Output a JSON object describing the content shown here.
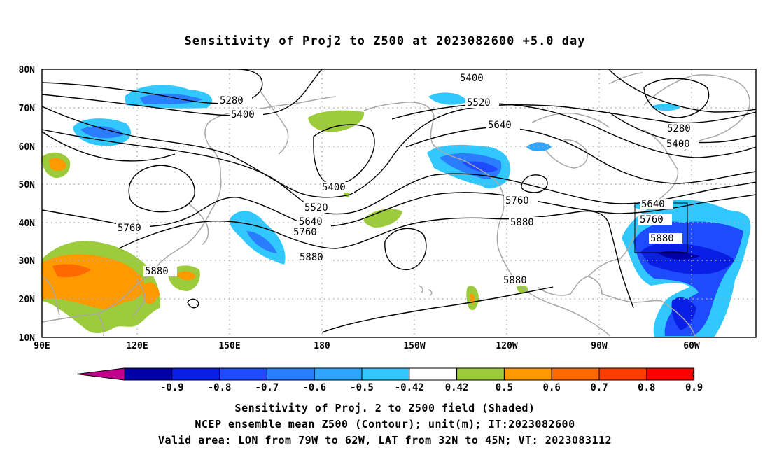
{
  "title": "Sensitivity of Proj2 to Z500 at 2023082600 +5.0 day",
  "captions": [
    "Sensitivity of Proj. 2 to Z500 field (Shaded)",
    "NCEP ensemble mean Z500 (Contour); unit(m); IT:2023082600",
    "Valid area: LON from 79W to 62W, LAT from 32N to 45N; VT: 2023083112"
  ],
  "lat_labels": [
    "80N",
    "70N",
    "60N",
    "50N",
    "40N",
    "30N",
    "20N",
    "10N"
  ],
  "lon_labels": [
    "90E",
    "120E",
    "150E",
    "180",
    "150W",
    "120W",
    "90W",
    "60W"
  ],
  "colorbar": {
    "labels": [
      "-0.9",
      "-0.8",
      "-0.7",
      "-0.6",
      "-0.5",
      "-0.42",
      "0.42",
      "0.5",
      "0.6",
      "0.7",
      "0.8",
      "0.9"
    ],
    "colors": [
      "#0000a8",
      "#0a1fe6",
      "#1e4bff",
      "#2a7dff",
      "#2ea6ff",
      "#30c8ff",
      "#ffffff",
      "#9ccc3c",
      "#ff9900",
      "#ff6a00",
      "#ff3c00",
      "#ff0000"
    ],
    "low_end_color": "#c0008c",
    "high_end_color": "#ff9ecf"
  },
  "contour_labels": [
    "5280",
    "5400",
    "5520",
    "5640",
    "5760",
    "5880"
  ],
  "colors": {
    "coast": "#a8a8a8",
    "grid": "#b0b0b0",
    "contour": "#000000"
  }
}
